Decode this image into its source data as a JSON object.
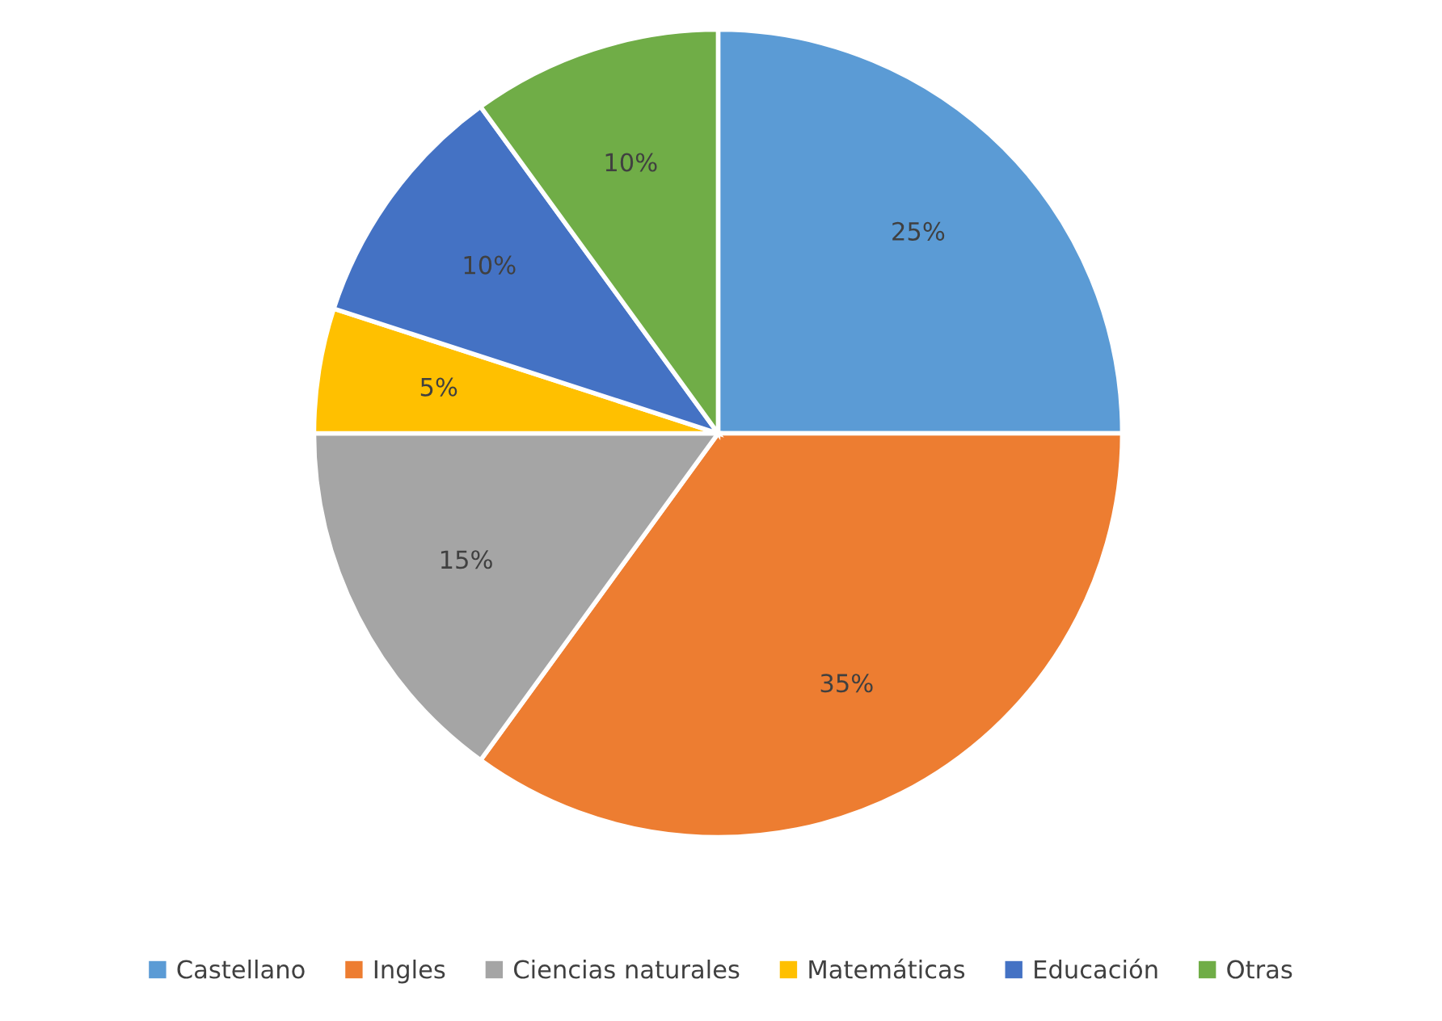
{
  "chart_data": {
    "type": "pie",
    "categories": [
      "Castellano",
      "Ingles",
      "Ciencias naturales",
      "Matemáticas",
      "Educación",
      "Otras"
    ],
    "values": [
      25,
      35,
      15,
      5,
      10,
      10
    ],
    "value_labels": [
      "25%",
      "35%",
      "15%",
      "5%",
      "10%",
      "10%"
    ],
    "colors": [
      "#5b9bd5",
      "#ed7d31",
      "#a5a5a5",
      "#ffc000",
      "#4472c4",
      "#70ad47"
    ],
    "legend": "bottom"
  }
}
